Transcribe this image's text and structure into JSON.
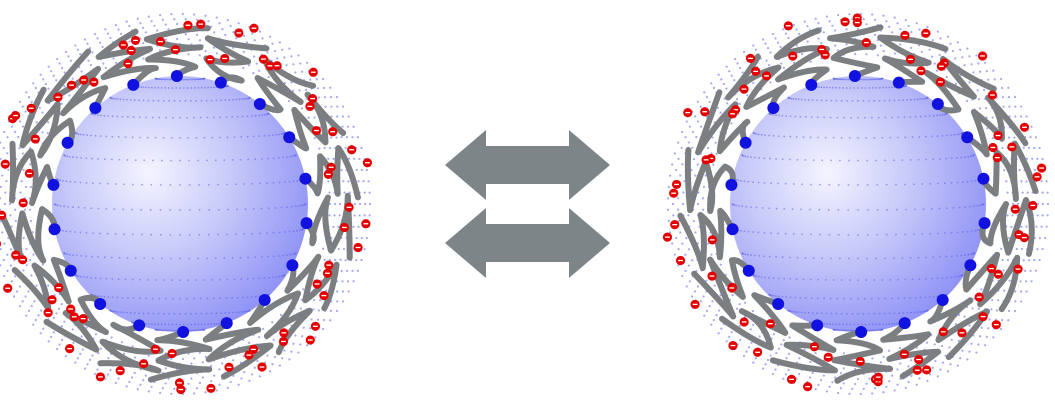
{
  "figure": {
    "left_particle": {
      "core_color": "#8b8ef5",
      "shell_dot_color": "#5a5fe6",
      "anchor_color": "#1212e0",
      "chain_color": "#7b7f82",
      "charge_color": "#e40000",
      "charge_sign": "−",
      "anchor_count": 18
    },
    "right_particle": {
      "core_color": "#8b8ef5",
      "shell_dot_color": "#5a5fe6",
      "anchor_color": "#1212e0",
      "chain_color": "#7b7f82",
      "charge_color": "#e40000",
      "charge_sign": "−",
      "anchor_count": 18
    },
    "arrows": {
      "color": "#7e8589",
      "count": 2,
      "direction": "double-headed"
    }
  }
}
